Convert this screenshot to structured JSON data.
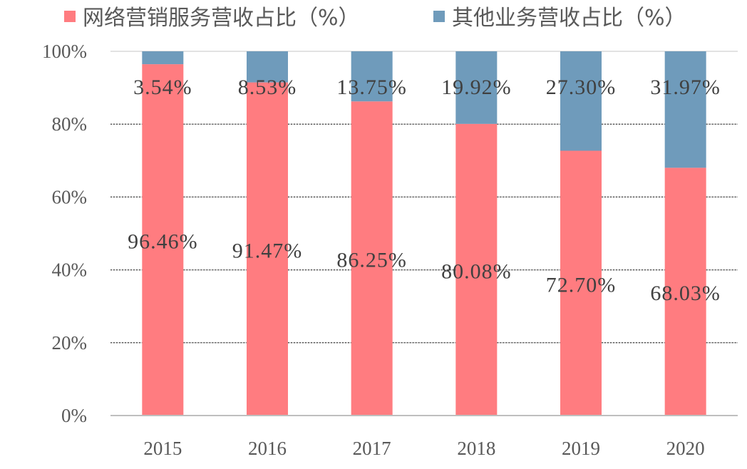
{
  "chart_data": {
    "type": "bar",
    "stacked": true,
    "categories": [
      "2015",
      "2016",
      "2017",
      "2018",
      "2019",
      "2020"
    ],
    "series": [
      {
        "name": "网络营销服务营收占比（%）",
        "color": "#ff7c80",
        "values": [
          96.46,
          91.47,
          86.25,
          80.08,
          72.7,
          68.03
        ],
        "labels": [
          "96.46%",
          "91.47%",
          "86.25%",
          "80.08%",
          "72.70%",
          "68.03%"
        ]
      },
      {
        "name": "其他业务营收占比（%）",
        "color": "#6f9bbb",
        "values": [
          3.54,
          8.53,
          13.75,
          19.92,
          27.3,
          31.97
        ],
        "labels": [
          "3.54%",
          "8.53%",
          "13.75%",
          "19.92%",
          "27.30%",
          "31.97%"
        ]
      }
    ],
    "yticks": [
      "0%",
      "20%",
      "40%",
      "60%",
      "80%",
      "100%"
    ],
    "ylim": [
      0,
      100
    ],
    "grid": true,
    "legend_position": "top",
    "xlabel": "",
    "ylabel": ""
  }
}
